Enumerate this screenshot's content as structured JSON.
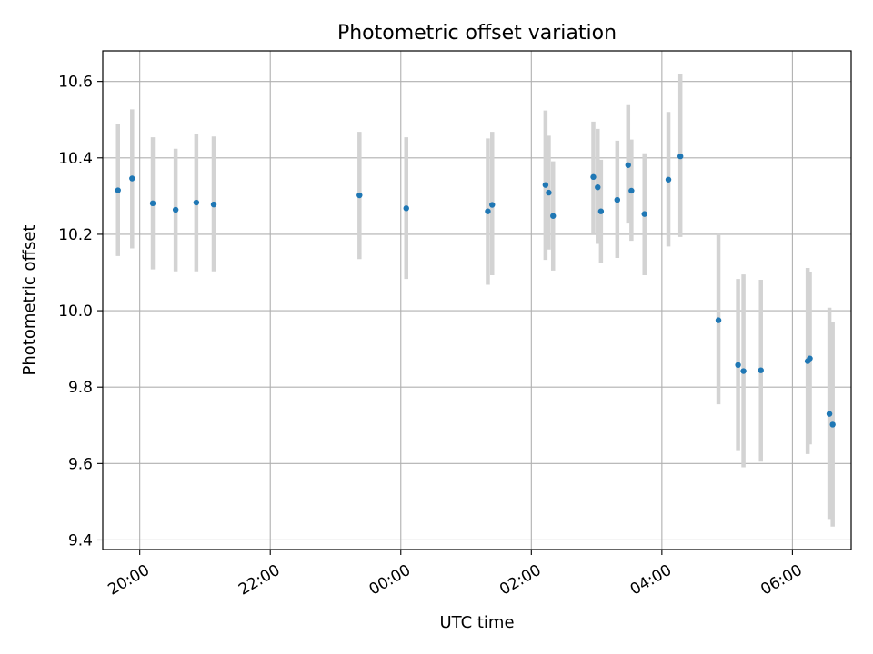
{
  "chart_data": {
    "type": "scatter",
    "title": "Photometric offset variation",
    "xlabel": "UTC time",
    "ylabel": "Photometric offset",
    "x_axis": {
      "kind": "time",
      "range": [
        "19:26",
        "06:54"
      ],
      "ticks": [
        "20:00",
        "22:00",
        "00:00",
        "02:00",
        "04:00",
        "06:00"
      ]
    },
    "y_axis": {
      "range": [
        9.375,
        10.68
      ],
      "ticks": [
        "9.4",
        "9.6",
        "9.8",
        "10.0",
        "10.2",
        "10.4",
        "10.6"
      ]
    },
    "grid": true,
    "legend": "none",
    "colors": {
      "points": "#1f77b4",
      "errorbars": "#d3d3d3",
      "grid": "#b0b0b0"
    },
    "points": [
      {
        "x": "19:40",
        "y": 10.315,
        "yerr_low": 10.143,
        "yerr_high": 10.488
      },
      {
        "x": "19:53",
        "y": 10.346,
        "yerr_low": 10.163,
        "yerr_high": 10.527
      },
      {
        "x": "20:12",
        "y": 10.281,
        "yerr_low": 10.108,
        "yerr_high": 10.454
      },
      {
        "x": "20:33",
        "y": 10.264,
        "yerr_low": 10.103,
        "yerr_high": 10.424
      },
      {
        "x": "20:52",
        "y": 10.283,
        "yerr_low": 10.103,
        "yerr_high": 10.463
      },
      {
        "x": "21:08",
        "y": 10.278,
        "yerr_low": 10.103,
        "yerr_high": 10.456
      },
      {
        "x": "23:22",
        "y": 10.302,
        "yerr_low": 10.135,
        "yerr_high": 10.468
      },
      {
        "x": "00:05",
        "y": 10.268,
        "yerr_low": 10.083,
        "yerr_high": 10.454
      },
      {
        "x": "01:20",
        "y": 10.26,
        "yerr_low": 10.068,
        "yerr_high": 10.451
      },
      {
        "x": "01:24",
        "y": 10.277,
        "yerr_low": 10.093,
        "yerr_high": 10.468
      },
      {
        "x": "02:13",
        "y": 10.329,
        "yerr_low": 10.133,
        "yerr_high": 10.524
      },
      {
        "x": "02:16",
        "y": 10.309,
        "yerr_low": 10.16,
        "yerr_high": 10.458
      },
      {
        "x": "02:20",
        "y": 10.248,
        "yerr_low": 10.105,
        "yerr_high": 10.391
      },
      {
        "x": "02:57",
        "y": 10.35,
        "yerr_low": 10.2,
        "yerr_high": 10.495
      },
      {
        "x": "03:01",
        "y": 10.323,
        "yerr_low": 10.175,
        "yerr_high": 10.476
      },
      {
        "x": "03:04",
        "y": 10.26,
        "yerr_low": 10.125,
        "yerr_high": 10.395
      },
      {
        "x": "03:19",
        "y": 10.29,
        "yerr_low": 10.138,
        "yerr_high": 10.445
      },
      {
        "x": "03:29",
        "y": 10.381,
        "yerr_low": 10.228,
        "yerr_high": 10.538
      },
      {
        "x": "03:32",
        "y": 10.314,
        "yerr_low": 10.183,
        "yerr_high": 10.448
      },
      {
        "x": "03:44",
        "y": 10.253,
        "yerr_low": 10.093,
        "yerr_high": 10.412
      },
      {
        "x": "04:06",
        "y": 10.343,
        "yerr_low": 10.168,
        "yerr_high": 10.52
      },
      {
        "x": "04:17",
        "y": 10.404,
        "yerr_low": 10.193,
        "yerr_high": 10.62
      },
      {
        "x": "04:52",
        "y": 9.975,
        "yerr_low": 9.755,
        "yerr_high": 10.2
      },
      {
        "x": "05:10",
        "y": 9.858,
        "yerr_low": 9.635,
        "yerr_high": 10.083
      },
      {
        "x": "05:15",
        "y": 9.842,
        "yerr_low": 9.59,
        "yerr_high": 10.095
      },
      {
        "x": "05:31",
        "y": 9.844,
        "yerr_low": 9.605,
        "yerr_high": 10.081
      },
      {
        "x": "06:14",
        "y": 9.868,
        "yerr_low": 9.625,
        "yerr_high": 10.112
      },
      {
        "x": "06:16",
        "y": 9.875,
        "yerr_low": 9.65,
        "yerr_high": 10.1
      },
      {
        "x": "06:34",
        "y": 9.73,
        "yerr_low": 9.455,
        "yerr_high": 10.008
      },
      {
        "x": "06:37",
        "y": 9.702,
        "yerr_low": 9.435,
        "yerr_high": 9.971
      }
    ]
  }
}
